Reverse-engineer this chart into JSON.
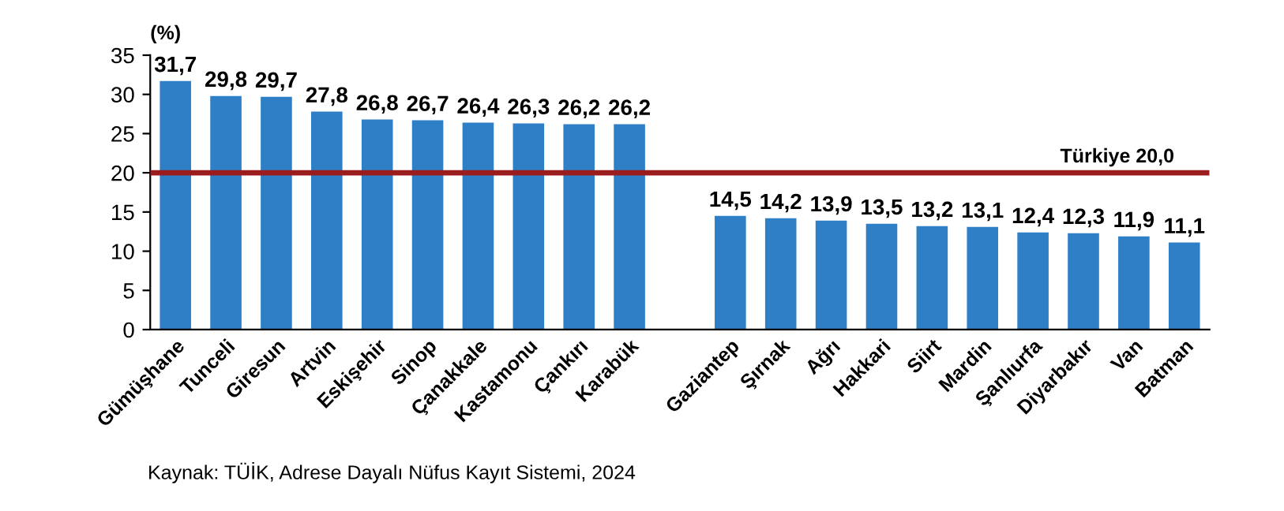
{
  "chart_data": {
    "type": "bar",
    "ylabel": "(%)",
    "categories": [
      "Gümüşhane",
      "Tunceli",
      "Giresun",
      "Artvin",
      "Eskişehir",
      "Sinop",
      "Çanakkale",
      "Kastamonu",
      "Çankırı",
      "Karabük",
      null,
      "Gaziantep",
      "Şırnak",
      "Ağrı",
      "Hakkari",
      "Siirt",
      "Mardin",
      "Şanlıurfa",
      "Diyarbakır",
      "Van",
      "Batman"
    ],
    "values": [
      31.7,
      29.8,
      29.7,
      27.8,
      26.8,
      26.7,
      26.4,
      26.3,
      26.2,
      26.2,
      null,
      14.5,
      14.2,
      13.9,
      13.5,
      13.2,
      13.1,
      12.4,
      12.3,
      11.9,
      11.1
    ],
    "value_labels": [
      "31,7",
      "29,8",
      "29,7",
      "27,8",
      "26,8",
      "26,7",
      "26,4",
      "26,3",
      "26,2",
      "26,2",
      null,
      "14,5",
      "14,2",
      "13,9",
      "13,5",
      "13,2",
      "13,1",
      "12,4",
      "12,3",
      "11,9",
      "11,1"
    ],
    "color": "#2e7fc6",
    "ylim": [
      0,
      35
    ],
    "yticks": [
      0,
      5,
      10,
      15,
      20,
      25,
      30,
      35
    ],
    "grid": false,
    "legend": false,
    "ref_lines": [
      {
        "axis": "y",
        "value": 20,
        "label": "Türkiye 20,0",
        "color": "#9b1c1c",
        "line_style": "solid"
      }
    ],
    "annotations": [
      "Kaynak: TÜİK, Adrese Dayalı Nüfus Kayıt Sistemi, 2024"
    ]
  }
}
